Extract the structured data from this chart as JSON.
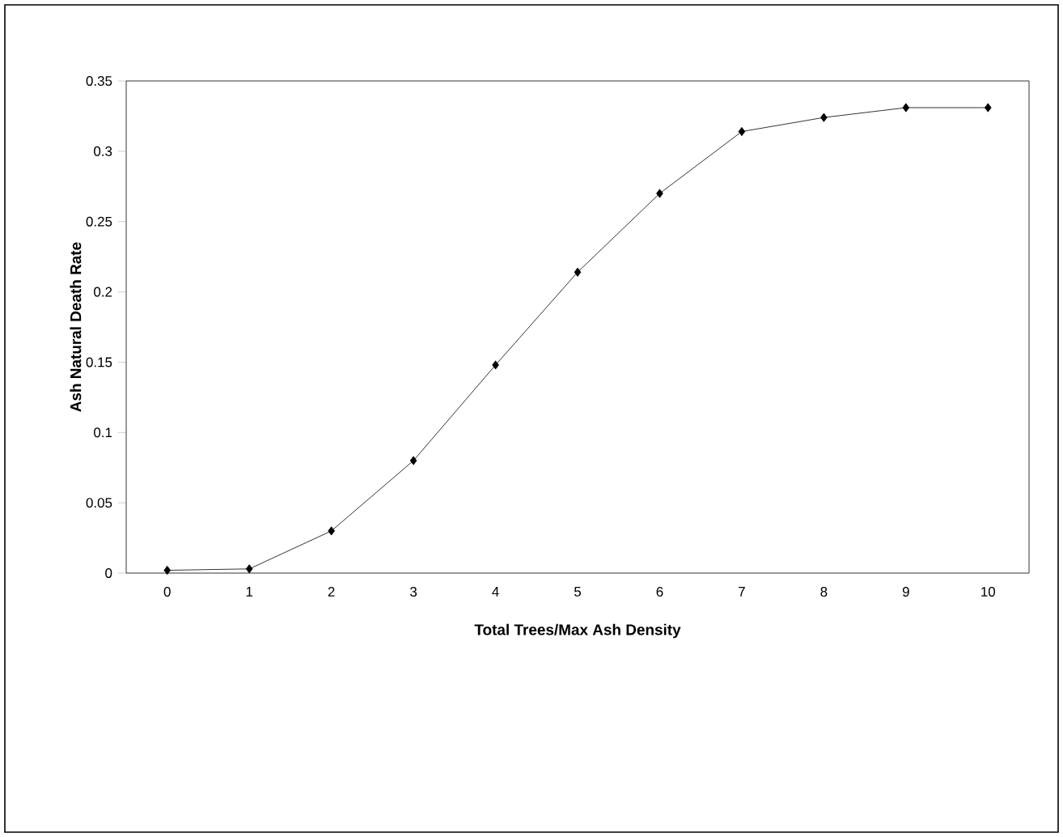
{
  "chart_data": {
    "type": "line",
    "xlabel": "Total Trees/Max Ash Density",
    "ylabel": "Ash Natural Death Rate",
    "categories": [
      "0",
      "1",
      "2",
      "3",
      "4",
      "5",
      "6",
      "7",
      "8",
      "9",
      "10"
    ],
    "series": [
      {
        "color": "#000000",
        "values": [
          0.002,
          0.003,
          0.03,
          0.08,
          0.148,
          0.214,
          0.27,
          0.314,
          0.324,
          0.331,
          0.331
        ]
      }
    ],
    "ylim": [
      0,
      0.35
    ],
    "yticks": [
      0,
      0.05,
      0.1,
      0.15,
      0.2,
      0.25,
      0.3,
      0.35
    ],
    "marker": "diamond",
    "line_style": "solid"
  }
}
